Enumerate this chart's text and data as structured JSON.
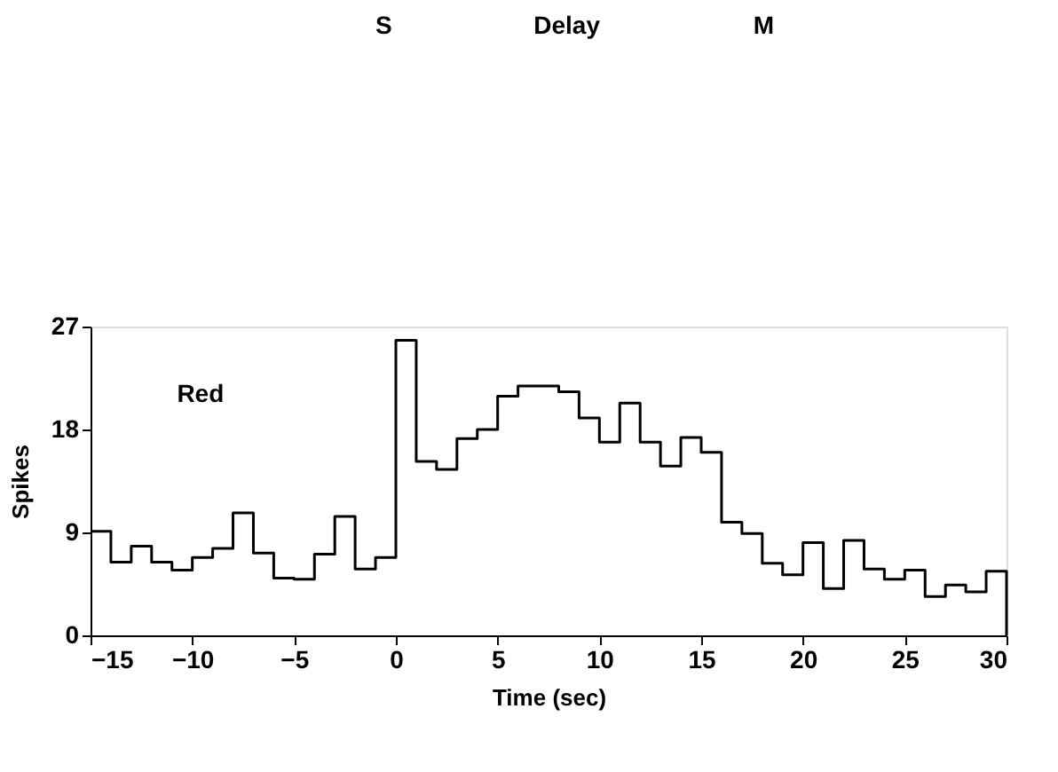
{
  "chart_data": {
    "type": "histogram",
    "xlabel": "Time (sec)",
    "ylabel": "Spikes",
    "annotations": [
      "Red",
      "S",
      "Delay",
      "M"
    ],
    "bins": [
      -15,
      -14,
      -13,
      -12,
      -11,
      -10,
      -9,
      -8,
      -7,
      -6,
      -5,
      -4,
      -3,
      -2,
      -1,
      0,
      1,
      2,
      3,
      4,
      5,
      6,
      7,
      8,
      9,
      10,
      11,
      12,
      13,
      14,
      15,
      16,
      17,
      18,
      19,
      20,
      21,
      22,
      23,
      24,
      25,
      26,
      27,
      28,
      29,
      30
    ],
    "values": [
      9.1,
      6.4,
      7.8,
      6.4,
      5.7,
      6.8,
      7.6,
      10.7,
      7.2,
      5.0,
      4.9,
      7.1,
      10.4,
      5.8,
      6.8,
      25.8,
      15.2,
      14.5,
      17.2,
      18.0,
      20.9,
      21.8,
      21.8,
      21.3,
      19.0,
      16.9,
      20.3,
      16.9,
      14.8,
      17.3,
      16.0,
      9.9,
      8.9,
      6.3,
      5.3,
      8.1,
      4.1,
      8.3,
      5.8,
      4.9,
      5.7,
      3.4,
      4.4,
      3.8,
      5.6
    ],
    "color": "#000000",
    "xlim": [
      -15,
      30
    ],
    "xticks": [
      -15,
      -10,
      -5,
      0,
      5,
      10,
      15,
      20,
      25,
      30
    ],
    "ylim": [
      0,
      27
    ],
    "yticks": [
      0,
      9,
      18,
      27
    ],
    "grid": false
  }
}
